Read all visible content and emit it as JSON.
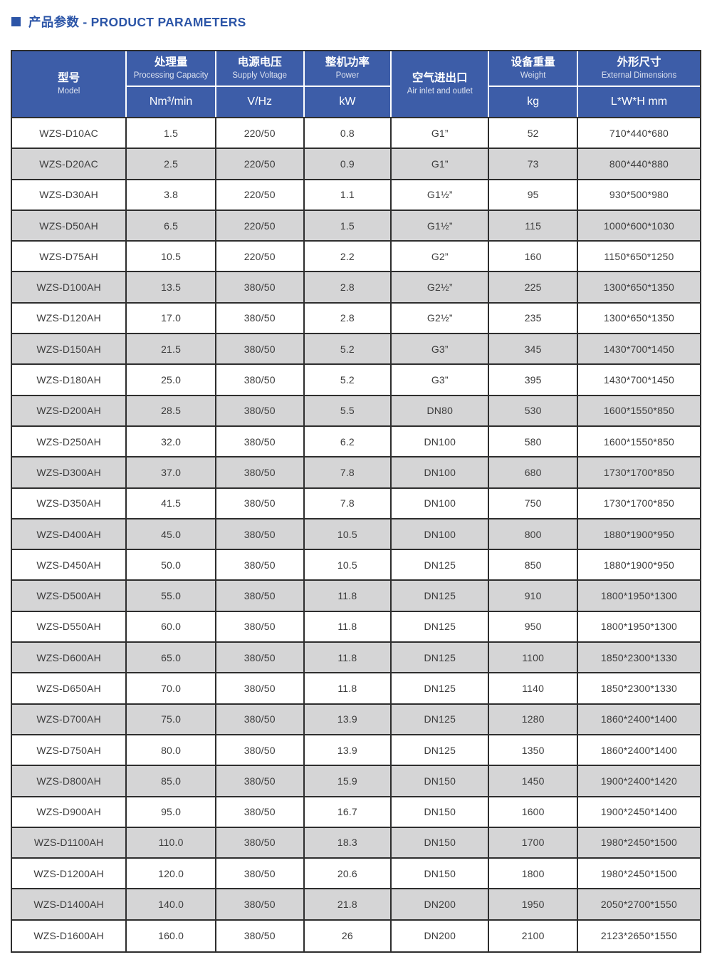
{
  "title": {
    "icon": "square-bullet",
    "text": "产品参数 - PRODUCT PARAMETERS"
  },
  "colors": {
    "accent_blue": "#3d5da8",
    "title_blue": "#2c55a7",
    "row_alt_gray": "#d5d5d6",
    "border_dark": "#2e2e2e",
    "header_text": "#ffffff"
  },
  "table": {
    "column_widths_pct": [
      16.7,
      13.0,
      12.8,
      12.7,
      14.2,
      12.9,
      17.7
    ],
    "columns": [
      {
        "key": "model",
        "zh": "型号",
        "en": "Model",
        "unit": null
      },
      {
        "key": "capacity",
        "zh": "处理量",
        "en": "Processing Capacity",
        "unit": "Nm³/min"
      },
      {
        "key": "voltage",
        "zh": "电源电压",
        "en": "Supply Voltage",
        "unit": "V/Hz"
      },
      {
        "key": "power",
        "zh": "整机功率",
        "en": "Power",
        "unit": "kW"
      },
      {
        "key": "air-inlet",
        "zh": "空气进出口",
        "en": "Air inlet and outlet",
        "unit": null
      },
      {
        "key": "weight",
        "zh": "设备重量",
        "en": "Weight",
        "unit": "kg"
      },
      {
        "key": "dimensions",
        "zh": "外形尺寸",
        "en": "External Dimensions",
        "unit": "L*W*H mm"
      }
    ],
    "rows": [
      [
        "WZS-D10AC",
        "1.5",
        "220/50",
        "0.8",
        "G1”",
        "52",
        "710*440*680"
      ],
      [
        "WZS-D20AC",
        "2.5",
        "220/50",
        "0.9",
        "G1”",
        "73",
        "800*440*880"
      ],
      [
        "WZS-D30AH",
        "3.8",
        "220/50",
        "1.1",
        "G1½”",
        "95",
        "930*500*980"
      ],
      [
        "WZS-D50AH",
        "6.5",
        "220/50",
        "1.5",
        "G1½”",
        "115",
        "1000*600*1030"
      ],
      [
        "WZS-D75AH",
        "10.5",
        "220/50",
        "2.2",
        "G2”",
        "160",
        "1150*650*1250"
      ],
      [
        "WZS-D100AH",
        "13.5",
        "380/50",
        "2.8",
        "G2½”",
        "225",
        "1300*650*1350"
      ],
      [
        "WZS-D120AH",
        "17.0",
        "380/50",
        "2.8",
        "G2½”",
        "235",
        "1300*650*1350"
      ],
      [
        "WZS-D150AH",
        "21.5",
        "380/50",
        "5.2",
        "G3”",
        "345",
        "1430*700*1450"
      ],
      [
        "WZS-D180AH",
        "25.0",
        "380/50",
        "5.2",
        "G3”",
        "395",
        "1430*700*1450"
      ],
      [
        "WZS-D200AH",
        "28.5",
        "380/50",
        "5.5",
        "DN80",
        "530",
        "1600*1550*850"
      ],
      [
        "WZS-D250AH",
        "32.0",
        "380/50",
        "6.2",
        "DN100",
        "580",
        "1600*1550*850"
      ],
      [
        "WZS-D300AH",
        "37.0",
        "380/50",
        "7.8",
        "DN100",
        "680",
        "1730*1700*850"
      ],
      [
        "WZS-D350AH",
        "41.5",
        "380/50",
        "7.8",
        "DN100",
        "750",
        "1730*1700*850"
      ],
      [
        "WZS-D400AH",
        "45.0",
        "380/50",
        "10.5",
        "DN100",
        "800",
        "1880*1900*950"
      ],
      [
        "WZS-D450AH",
        "50.0",
        "380/50",
        "10.5",
        "DN125",
        "850",
        "1880*1900*950"
      ],
      [
        "WZS-D500AH",
        "55.0",
        "380/50",
        "11.8",
        "DN125",
        "910",
        "1800*1950*1300"
      ],
      [
        "WZS-D550AH",
        "60.0",
        "380/50",
        "11.8",
        "DN125",
        "950",
        "1800*1950*1300"
      ],
      [
        "WZS-D600AH",
        "65.0",
        "380/50",
        "11.8",
        "DN125",
        "1100",
        "1850*2300*1330"
      ],
      [
        "WZS-D650AH",
        "70.0",
        "380/50",
        "11.8",
        "DN125",
        "1140",
        "1850*2300*1330"
      ],
      [
        "WZS-D700AH",
        "75.0",
        "380/50",
        "13.9",
        "DN125",
        "1280",
        "1860*2400*1400"
      ],
      [
        "WZS-D750AH",
        "80.0",
        "380/50",
        "13.9",
        "DN125",
        "1350",
        "1860*2400*1400"
      ],
      [
        "WZS-D800AH",
        "85.0",
        "380/50",
        "15.9",
        "DN150",
        "1450",
        "1900*2400*1420"
      ],
      [
        "WZS-D900AH",
        "95.0",
        "380/50",
        "16.7",
        "DN150",
        "1600",
        "1900*2450*1400"
      ],
      [
        "WZS-D1100AH",
        "110.0",
        "380/50",
        "18.3",
        "DN150",
        "1700",
        "1980*2450*1500"
      ],
      [
        "WZS-D1200AH",
        "120.0",
        "380/50",
        "20.6",
        "DN150",
        "1800",
        "1980*2450*1500"
      ],
      [
        "WZS-D1400AH",
        "140.0",
        "380/50",
        "21.8",
        "DN200",
        "1950",
        "2050*2700*1550"
      ],
      [
        "WZS-D1600AH",
        "160.0",
        "380/50",
        "26",
        "DN200",
        "2100",
        "2123*2650*1550"
      ]
    ]
  }
}
